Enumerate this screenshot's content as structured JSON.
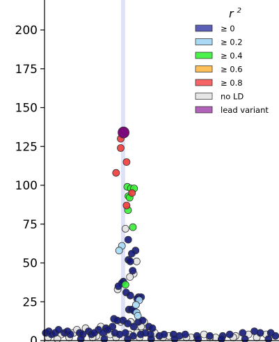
{
  "chart_data": {
    "type": "scatter",
    "ylim": [
      0,
      220
    ],
    "y_ticks": [
      {
        "value": 0,
        "label": "0"
      },
      {
        "value": 25,
        "label": "25"
      },
      {
        "value": 50,
        "label": "50"
      },
      {
        "value": 75,
        "label": "75"
      },
      {
        "value": 100,
        "label": "100"
      },
      {
        "value": 125,
        "label": "125"
      },
      {
        "value": 150,
        "label": "150"
      },
      {
        "value": 175,
        "label": "175"
      },
      {
        "value": 200,
        "label": "200"
      }
    ],
    "grid": false,
    "highlight_band": {
      "x": 0.335,
      "color": "#c9cdf0"
    },
    "legend": {
      "placement": "top-right",
      "title": "r",
      "title_superscript": "2",
      "entries": [
        {
          "label": "≥ 0",
          "color": "#5b5fb5"
        },
        {
          "label": "≥ 0.2",
          "color": "#a9d9f5"
        },
        {
          "label": "≥ 0.4",
          "color": "#4cf24c"
        },
        {
          "label": "≥ 0.6",
          "color": "#ffc05a"
        },
        {
          "label": "≥ 0.8",
          "color": "#f56565"
        },
        {
          "label": "no LD",
          "color": "#e6e6e6"
        },
        {
          "label": "lead variant",
          "color": "#b063b8"
        }
      ]
    },
    "category_colors": {
      "ge0": "#141a7a",
      "ge02": "#a9d9f5",
      "ge04": "#39f039",
      "ge06": "#ffc05a",
      "ge08": "#ef3b3b",
      "noLD": "#e4e4e4",
      "lead": "#7a0a7a"
    },
    "points": [
      {
        "x": 0.337,
        "y": 134,
        "cat": "lead"
      },
      {
        "x": 0.34,
        "y": 133,
        "cat": "ge08"
      },
      {
        "x": 0.325,
        "y": 130,
        "cat": "ge08"
      },
      {
        "x": 0.325,
        "y": 124,
        "cat": "ge08"
      },
      {
        "x": 0.35,
        "y": 115,
        "cat": "ge08"
      },
      {
        "x": 0.305,
        "y": 108,
        "cat": "ge08"
      },
      {
        "x": 0.353,
        "y": 99,
        "cat": "ge04"
      },
      {
        "x": 0.368,
        "y": 98,
        "cat": "ge04"
      },
      {
        "x": 0.382,
        "y": 98,
        "cat": "ge04"
      },
      {
        "x": 0.373,
        "y": 95,
        "cat": "ge08"
      },
      {
        "x": 0.358,
        "y": 93,
        "cat": "ge04"
      },
      {
        "x": 0.363,
        "y": 92,
        "cat": "ge04"
      },
      {
        "x": 0.35,
        "y": 87,
        "cat": "ge08"
      },
      {
        "x": 0.356,
        "y": 84,
        "cat": "ge04"
      },
      {
        "x": 0.377,
        "y": 73,
        "cat": "ge04"
      },
      {
        "x": 0.345,
        "y": 72,
        "cat": "noLD"
      },
      {
        "x": 0.357,
        "y": 65,
        "cat": "ge0"
      },
      {
        "x": 0.33,
        "y": 61,
        "cat": "ge02"
      },
      {
        "x": 0.318,
        "y": 58,
        "cat": "ge02"
      },
      {
        "x": 0.388,
        "y": 58,
        "cat": "ge0"
      },
      {
        "x": 0.372,
        "y": 56,
        "cat": "ge0"
      },
      {
        "x": 0.358,
        "y": 52,
        "cat": "ge0"
      },
      {
        "x": 0.366,
        "y": 51,
        "cat": "ge0"
      },
      {
        "x": 0.393,
        "y": 51,
        "cat": "noLD"
      },
      {
        "x": 0.376,
        "y": 45,
        "cat": "ge0"
      },
      {
        "x": 0.38,
        "y": 43,
        "cat": "noLD"
      },
      {
        "x": 0.364,
        "y": 41,
        "cat": "noLD"
      },
      {
        "x": 0.336,
        "y": 38,
        "cat": "ge0"
      },
      {
        "x": 0.33,
        "y": 37,
        "cat": "ge0"
      },
      {
        "x": 0.345,
        "y": 36,
        "cat": "ge04"
      },
      {
        "x": 0.315,
        "y": 35,
        "cat": "ge0"
      },
      {
        "x": 0.312,
        "y": 33,
        "cat": "noLD"
      },
      {
        "x": 0.348,
        "y": 31,
        "cat": "ge0"
      },
      {
        "x": 0.366,
        "y": 29,
        "cat": "ge0"
      },
      {
        "x": 0.401,
        "y": 28,
        "cat": "ge0"
      },
      {
        "x": 0.412,
        "y": 28,
        "cat": "ge0"
      },
      {
        "x": 0.395,
        "y": 27,
        "cat": "ge0"
      },
      {
        "x": 0.404,
        "y": 26,
        "cat": "ge02"
      },
      {
        "x": 0.39,
        "y": 23,
        "cat": "ge02"
      },
      {
        "x": 0.36,
        "y": 20,
        "cat": "ge0"
      },
      {
        "x": 0.372,
        "y": 20,
        "cat": "ge0"
      },
      {
        "x": 0.383,
        "y": 19,
        "cat": "ge0"
      },
      {
        "x": 0.393,
        "y": 18,
        "cat": "ge02"
      },
      {
        "x": 0.398,
        "y": 16,
        "cat": "ge02"
      },
      {
        "x": 0.296,
        "y": 14,
        "cat": "ge0"
      },
      {
        "x": 0.31,
        "y": 13,
        "cat": "ge0"
      },
      {
        "x": 0.325,
        "y": 12,
        "cat": "noLD"
      },
      {
        "x": 0.335,
        "y": 13,
        "cat": "ge0"
      },
      {
        "x": 0.355,
        "y": 11,
        "cat": "ge0"
      },
      {
        "x": 0.368,
        "y": 12,
        "cat": "noLD"
      },
      {
        "x": 0.4,
        "y": 12,
        "cat": "ge0"
      },
      {
        "x": 0.418,
        "y": 13,
        "cat": "ge0"
      },
      {
        "x": 0.425,
        "y": 12,
        "cat": "noLD"
      },
      {
        "x": 0.445,
        "y": 9,
        "cat": "ge0"
      },
      {
        "x": 0.46,
        "y": 8,
        "cat": "ge0"
      },
      {
        "x": 0.38,
        "y": 9,
        "cat": "ge0"
      },
      {
        "x": 0.29,
        "y": 9,
        "cat": "ge0"
      },
      {
        "x": 0.262,
        "y": 8,
        "cat": "ge0"
      },
      {
        "x": 0.24,
        "y": 9,
        "cat": "noLD"
      },
      {
        "x": 0.27,
        "y": 7,
        "cat": "ge0"
      },
      {
        "x": 0.23,
        "y": 7,
        "cat": "ge0"
      },
      {
        "x": 0.412,
        "y": 9,
        "cat": "noLD"
      },
      {
        "x": 0.005,
        "y": 5,
        "cat": "ge0"
      },
      {
        "x": 0.018,
        "y": 6,
        "cat": "ge0"
      },
      {
        "x": 0.03,
        "y": 4,
        "cat": "ge0"
      },
      {
        "x": 0.045,
        "y": 5,
        "cat": "ge0"
      },
      {
        "x": 0.06,
        "y": 7,
        "cat": "ge0"
      },
      {
        "x": 0.072,
        "y": 4,
        "cat": "noLD"
      },
      {
        "x": 0.085,
        "y": 5,
        "cat": "ge0"
      },
      {
        "x": 0.098,
        "y": 6,
        "cat": "ge0"
      },
      {
        "x": 0.11,
        "y": 4,
        "cat": "ge0"
      },
      {
        "x": 0.124,
        "y": 5,
        "cat": "noLD"
      },
      {
        "x": 0.138,
        "y": 7,
        "cat": "noLD"
      },
      {
        "x": 0.15,
        "y": 5,
        "cat": "ge0"
      },
      {
        "x": 0.163,
        "y": 4,
        "cat": "ge0"
      },
      {
        "x": 0.175,
        "y": 8,
        "cat": "noLD"
      },
      {
        "x": 0.188,
        "y": 6,
        "cat": "ge0"
      },
      {
        "x": 0.2,
        "y": 4,
        "cat": "ge0"
      },
      {
        "x": 0.212,
        "y": 5,
        "cat": "ge0"
      },
      {
        "x": 0.222,
        "y": 3,
        "cat": "noLD"
      },
      {
        "x": 0.25,
        "y": 5,
        "cat": "ge0"
      },
      {
        "x": 0.28,
        "y": 4,
        "cat": "noLD"
      },
      {
        "x": 0.3,
        "y": 5,
        "cat": "ge0"
      },
      {
        "x": 0.32,
        "y": 4,
        "cat": "ge0"
      },
      {
        "x": 0.345,
        "y": 5,
        "cat": "ge0"
      },
      {
        "x": 0.362,
        "y": 4,
        "cat": "noLD"
      },
      {
        "x": 0.378,
        "y": 3,
        "cat": "ge0"
      },
      {
        "x": 0.395,
        "y": 5,
        "cat": "noLD"
      },
      {
        "x": 0.41,
        "y": 4,
        "cat": "ge0"
      },
      {
        "x": 0.43,
        "y": 5,
        "cat": "ge0"
      },
      {
        "x": 0.452,
        "y": 4,
        "cat": "ge0"
      },
      {
        "x": 0.47,
        "y": 5,
        "cat": "noLD"
      },
      {
        "x": 0.49,
        "y": 3,
        "cat": "ge0"
      },
      {
        "x": 0.51,
        "y": 4,
        "cat": "ge0"
      },
      {
        "x": 0.53,
        "y": 3,
        "cat": "noLD"
      },
      {
        "x": 0.55,
        "y": 4,
        "cat": "ge0"
      },
      {
        "x": 0.575,
        "y": 3,
        "cat": "ge0"
      },
      {
        "x": 0.6,
        "y": 4,
        "cat": "ge0"
      },
      {
        "x": 0.625,
        "y": 2,
        "cat": "noLD"
      },
      {
        "x": 0.65,
        "y": 3,
        "cat": "ge0"
      },
      {
        "x": 0.68,
        "y": 4,
        "cat": "noLD"
      },
      {
        "x": 0.705,
        "y": 3,
        "cat": "ge0"
      },
      {
        "x": 0.73,
        "y": 2,
        "cat": "noLD"
      },
      {
        "x": 0.76,
        "y": 3,
        "cat": "ge0"
      },
      {
        "x": 0.79,
        "y": 4,
        "cat": "ge0"
      },
      {
        "x": 0.815,
        "y": 3,
        "cat": "noLD"
      },
      {
        "x": 0.845,
        "y": 5,
        "cat": "ge0"
      },
      {
        "x": 0.87,
        "y": 4,
        "cat": "noLD"
      },
      {
        "x": 0.895,
        "y": 6,
        "cat": "ge0"
      },
      {
        "x": 0.92,
        "y": 5,
        "cat": "ge0"
      },
      {
        "x": 0.945,
        "y": 4,
        "cat": "noLD"
      },
      {
        "x": 0.965,
        "y": 5,
        "cat": "ge0"
      },
      {
        "x": 0.985,
        "y": 3,
        "cat": "ge0"
      },
      {
        "x": 0.015,
        "y": 2,
        "cat": "noLD"
      },
      {
        "x": 0.055,
        "y": 1,
        "cat": "noLD"
      },
      {
        "x": 0.105,
        "y": 2,
        "cat": "noLD"
      },
      {
        "x": 0.155,
        "y": 1,
        "cat": "ge0"
      },
      {
        "x": 0.205,
        "y": 2,
        "cat": "noLD"
      },
      {
        "x": 0.255,
        "y": 1,
        "cat": "ge0"
      },
      {
        "x": 0.305,
        "y": 2,
        "cat": "noLD"
      },
      {
        "x": 0.355,
        "y": 1,
        "cat": "ge0"
      },
      {
        "x": 0.405,
        "y": 2,
        "cat": "noLD"
      },
      {
        "x": 0.455,
        "y": 1,
        "cat": "ge0"
      },
      {
        "x": 0.505,
        "y": 2,
        "cat": "noLD"
      },
      {
        "x": 0.555,
        "y": 1,
        "cat": "ge0"
      },
      {
        "x": 0.605,
        "y": 2,
        "cat": "noLD"
      },
      {
        "x": 0.655,
        "y": 1,
        "cat": "ge0"
      },
      {
        "x": 0.705,
        "y": 2,
        "cat": "noLD"
      },
      {
        "x": 0.755,
        "y": 1,
        "cat": "ge0"
      },
      {
        "x": 0.805,
        "y": 2,
        "cat": "noLD"
      },
      {
        "x": 0.855,
        "y": 1,
        "cat": "ge0"
      },
      {
        "x": 0.905,
        "y": 2,
        "cat": "noLD"
      },
      {
        "x": 0.955,
        "y": 1,
        "cat": "ge0"
      }
    ]
  }
}
